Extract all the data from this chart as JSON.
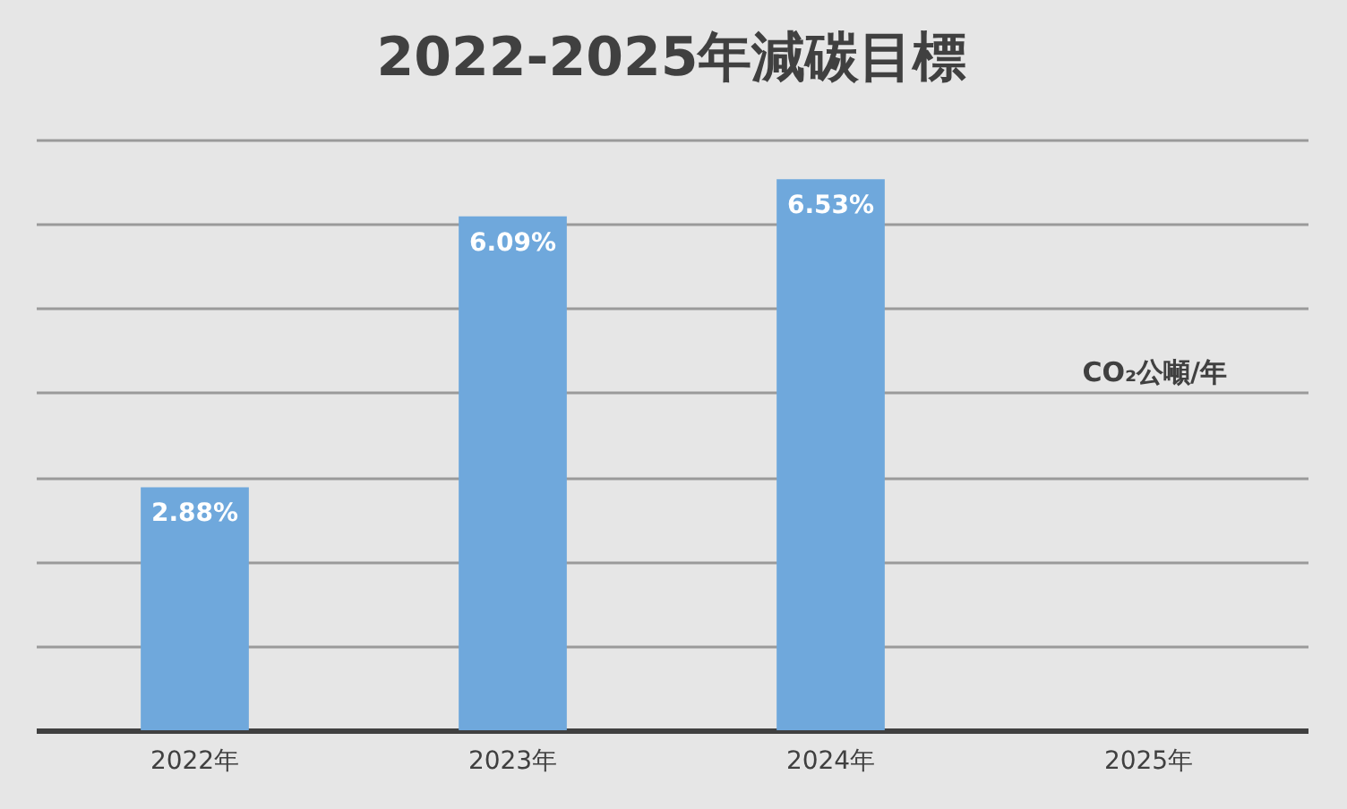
{
  "chart_data": {
    "type": "bar",
    "title": "2022-2025年減碳目標",
    "categories": [
      "2022年",
      "2023年",
      "2024年",
      "2025年"
    ],
    "values": [
      2.88,
      6.09,
      6.53,
      null
    ],
    "value_labels": [
      "2.88%",
      "6.09%",
      "6.53%",
      null
    ],
    "color": "#6fa8dc",
    "ylim": [
      0,
      7
    ],
    "yticks": [
      {
        "value": 0,
        "label": null
      },
      {
        "value": 1,
        "label": null
      },
      {
        "value": 2,
        "label": null
      },
      {
        "value": 3,
        "label": null
      },
      {
        "value": 4,
        "label": null
      },
      {
        "value": 5,
        "label": null
      },
      {
        "value": 6,
        "label": null
      },
      {
        "value": 7,
        "label": null
      }
    ],
    "tick_labels": "x",
    "grid": "y",
    "annotations": [
      "CO₂公噸/年"
    ]
  }
}
